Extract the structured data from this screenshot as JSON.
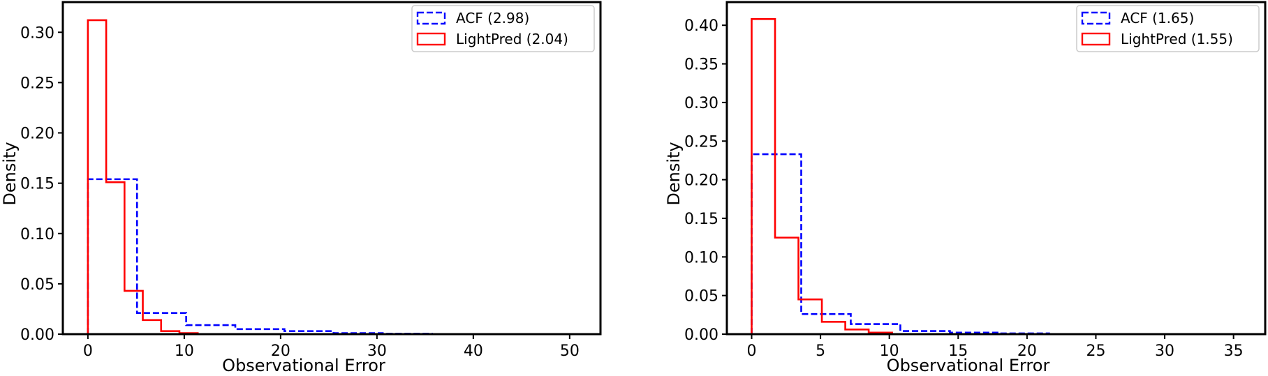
{
  "chart_data": [
    {
      "type": "histogram",
      "xlabel": "Observational Error",
      "ylabel": "Density",
      "xlim": [
        -2.6,
        53.2
      ],
      "ylim": [
        0,
        0.33
      ],
      "xticks": [
        0,
        10,
        20,
        30,
        40,
        50
      ],
      "yticks": [
        0.0,
        0.05,
        0.1,
        0.15,
        0.2,
        0.25,
        0.3
      ],
      "legend_position": "top-right",
      "grid": false,
      "series": [
        {
          "name": "ACF (2.98)",
          "color": "#0000ff",
          "linestyle": "dashed",
          "bin_edges": [
            0,
            5.1,
            10.2,
            15.3,
            20.4,
            25.5,
            30.6,
            35.7
          ],
          "values": [
            0.154,
            0.021,
            0.009,
            0.005,
            0.003,
            0.001,
            0.0005
          ]
        },
        {
          "name": "LightPred (2.04)",
          "color": "#ff0000",
          "linestyle": "solid",
          "bin_edges": [
            0,
            1.9,
            3.8,
            5.7,
            7.6,
            9.5,
            11.4
          ],
          "values": [
            0.312,
            0.151,
            0.043,
            0.014,
            0.003,
            0.001
          ]
        }
      ]
    },
    {
      "type": "histogram",
      "xlabel": "Observational Error",
      "ylabel": "Density",
      "xlim": [
        -1.8,
        37.3
      ],
      "ylim": [
        0,
        0.43
      ],
      "xticks": [
        0,
        5,
        10,
        15,
        20,
        25,
        30,
        35
      ],
      "yticks": [
        0.0,
        0.05,
        0.1,
        0.15,
        0.2,
        0.25,
        0.3,
        0.35,
        0.4
      ],
      "legend_position": "top-right",
      "grid": false,
      "series": [
        {
          "name": "ACF (1.65)",
          "color": "#0000ff",
          "linestyle": "dashed",
          "bin_edges": [
            0,
            3.6,
            7.2,
            10.8,
            14.4,
            18.0,
            21.6
          ],
          "values": [
            0.233,
            0.026,
            0.013,
            0.004,
            0.002,
            0.001
          ]
        },
        {
          "name": "LightPred (1.55)",
          "color": "#ff0000",
          "linestyle": "solid",
          "bin_edges": [
            0,
            1.7,
            3.4,
            5.1,
            6.8,
            8.5,
            10.2
          ],
          "values": [
            0.408,
            0.125,
            0.045,
            0.016,
            0.006,
            0.002
          ]
        }
      ]
    }
  ]
}
